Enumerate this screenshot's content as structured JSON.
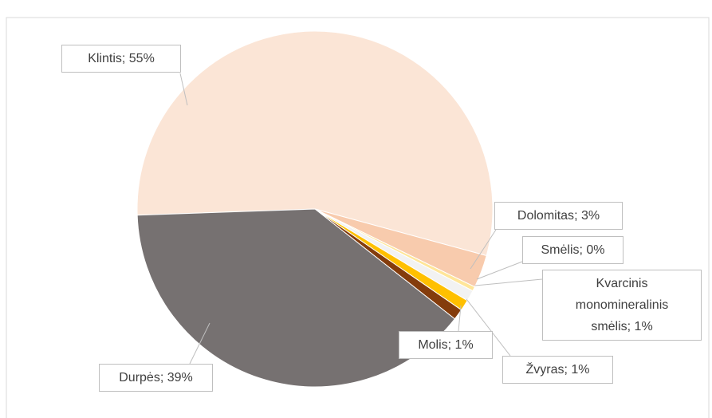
{
  "chart_data": {
    "type": "pie",
    "categories": [
      "Klintis",
      "Dolomitas",
      "Smėlis",
      "Kvarcinis monomineralinis smėlis",
      "Žvyras",
      "Molis",
      "Durpės"
    ],
    "values": [
      55,
      3,
      0.4,
      1,
      1,
      1,
      39
    ],
    "value_labels": [
      "55%",
      "3%",
      "0%",
      "1%",
      "1%",
      "1%",
      "39%"
    ],
    "colors": [
      "#fbe5d6",
      "#f8cbad",
      "#ffe699",
      "#f2f2f2",
      "#ffc000",
      "#843c0c",
      "#767171"
    ]
  }
}
